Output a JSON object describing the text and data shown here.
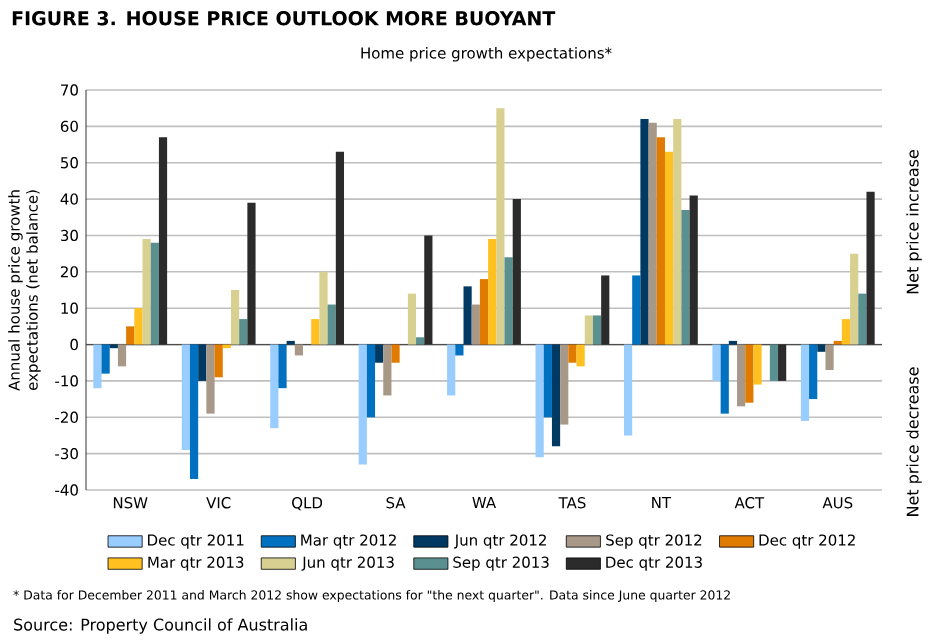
{
  "chart_data": {
    "type": "bar",
    "title": "FIGURE 3. HOUSE PRICE OUTLOOK MORE BUOYANT",
    "subtitle": "Home price growth expectations*",
    "ylabel": "Annual house price growth expectations (net balance)",
    "categories": [
      "NSW",
      "VIC",
      "QLD",
      "SA",
      "WA",
      "TAS",
      "NT",
      "ACT",
      "AUS"
    ],
    "series": [
      {
        "name": "Dec qtr 2011",
        "color": "#99ccff",
        "values": [
          -12,
          -29,
          -23,
          -33,
          -14,
          -31,
          -25,
          -10,
          -21
        ]
      },
      {
        "name": "Mar qtr 2012",
        "color": "#0070c0",
        "values": [
          -8,
          -37,
          -12,
          -20,
          -3,
          -20,
          19,
          -19,
          -15
        ]
      },
      {
        "name": "Jun qtr 2012",
        "color": "#003a63",
        "values": [
          -1,
          -10,
          1,
          -5,
          16,
          -28,
          62,
          1,
          -2
        ]
      },
      {
        "name": "Sep qtr 2012",
        "color": "#a89888",
        "values": [
          -6,
          -19,
          -3,
          -14,
          11,
          -22,
          61,
          -17,
          -7
        ]
      },
      {
        "name": "Dec qtr 2012",
        "color": "#e07b00",
        "values": [
          5,
          -9,
          0,
          -5,
          18,
          -5,
          57,
          -16,
          1
        ]
      },
      {
        "name": "Mar qtr 2013",
        "color": "#ffc020",
        "values": [
          10,
          -1,
          7,
          0,
          29,
          -6,
          53,
          -11,
          7
        ]
      },
      {
        "name": "Jun qtr 2013",
        "color": "#d8d090",
        "values": [
          29,
          15,
          20,
          14,
          65,
          8,
          62,
          0,
          25
        ]
      },
      {
        "name": "Sep qtr 2013",
        "color": "#5a9090",
        "values": [
          28,
          7,
          11,
          2,
          24,
          8,
          37,
          -10,
          14
        ]
      },
      {
        "name": "Dec qtr 2013",
        "color": "#2b2b2b",
        "values": [
          57,
          39,
          53,
          30,
          40,
          19,
          41,
          -10,
          42
        ]
      }
    ],
    "ylim": [
      -40,
      70
    ],
    "yticks": [
      -40,
      -30,
      -20,
      -10,
      0,
      10,
      20,
      30,
      40,
      50,
      60,
      70
    ],
    "grid": "y",
    "legend": "bottom",
    "annotations": [
      "Net price increase",
      "Net price decrease",
      "* Data for December 2011 and March 2012 show expectations for \"the next quarter\". Data since June quarter 2012",
      "Source: Property Council of Australia"
    ]
  }
}
